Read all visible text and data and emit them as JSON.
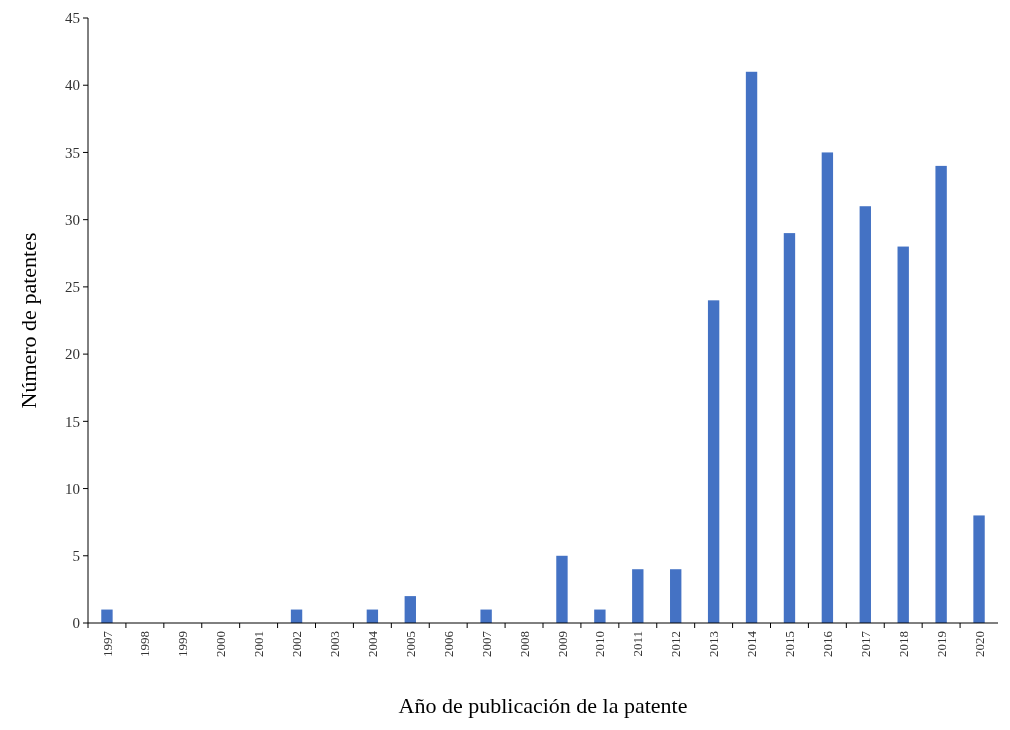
{
  "chart_data": {
    "type": "bar",
    "xlabel": "Año de publicación de la patente",
    "ylabel": "Número de patentes",
    "categories": [
      "1997",
      "1998",
      "1999",
      "2000",
      "2001",
      "2002",
      "2003",
      "2004",
      "2005",
      "2006",
      "2007",
      "2008",
      "2009",
      "2010",
      "2011",
      "2012",
      "2013",
      "2014",
      "2015",
      "2016",
      "2017",
      "2018",
      "2019",
      "2020"
    ],
    "values": [
      1,
      0,
      0,
      0,
      0,
      1,
      0,
      1,
      2,
      0,
      1,
      0,
      5,
      1,
      4,
      4,
      24,
      41,
      29,
      35,
      31,
      28,
      34,
      8
    ],
    "color": "#4472c4",
    "ylim": [
      0,
      45
    ],
    "yticks": [
      0,
      5,
      10,
      15,
      20,
      25,
      30,
      35,
      40,
      45
    ],
    "grid": false
  }
}
